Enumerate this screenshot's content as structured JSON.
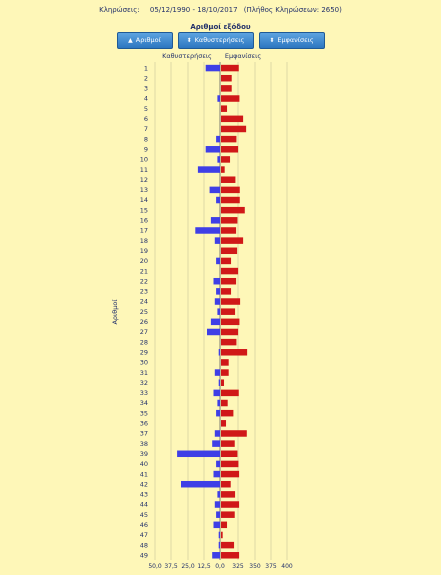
{
  "header": {
    "label": "Κληρώσεις:",
    "range": "05/12/1990 - 18/10/2017",
    "count": "(Πλήθος Κληρώσεων: 2650)"
  },
  "sort": {
    "title": "Αριθμοί εξόδου",
    "buttons": [
      {
        "label": "Αριθμοί",
        "arrow": "▲"
      },
      {
        "label": "Καθυστερήσεις",
        "arrow": "⬍"
      },
      {
        "label": "Εμφανίσεις",
        "arrow": "⬍"
      }
    ]
  },
  "chart_data": {
    "type": "bar",
    "orientation": "horizontal-butterfly",
    "categories": [
      "1",
      "2",
      "3",
      "4",
      "5",
      "6",
      "7",
      "8",
      "9",
      "10",
      "11",
      "12",
      "13",
      "14",
      "15",
      "16",
      "17",
      "18",
      "19",
      "20",
      "21",
      "22",
      "23",
      "24",
      "25",
      "26",
      "27",
      "28",
      "29",
      "30",
      "31",
      "32",
      "33",
      "34",
      "35",
      "36",
      "37",
      "38",
      "39",
      "40",
      "41",
      "42",
      "43",
      "44",
      "45",
      "46",
      "47",
      "48",
      "49"
    ],
    "series": [
      {
        "name": "Καθυστερήσεις",
        "color": "#3f3fe6",
        "values": [
          11,
          0,
          0,
          2,
          0,
          0,
          0,
          3,
          11,
          2,
          17,
          0,
          8,
          3,
          0,
          7,
          19,
          4,
          0,
          3,
          0,
          5,
          3,
          4,
          2,
          7,
          10,
          0,
          1,
          0,
          4,
          1,
          5,
          2,
          3,
          0,
          4,
          6,
          33,
          3,
          5,
          30,
          2,
          4,
          3,
          5,
          1,
          1,
          6
        ]
      },
      {
        "name": "Εμφανίσεις",
        "color": "#d01818",
        "values": [
          253,
          232,
          232,
          255,
          218,
          266,
          275,
          246,
          251,
          227,
          211,
          243,
          256,
          256,
          271,
          249,
          245,
          266,
          248,
          230,
          251,
          245,
          230,
          257,
          242,
          255,
          251,
          246,
          278,
          223,
          223,
          209,
          253,
          220,
          237,
          215,
          277,
          241,
          249,
          252,
          254,
          229,
          242,
          254,
          241,
          218,
          205,
          239,
          254
        ]
      }
    ],
    "left_label": "Καθυστερήσεις",
    "right_label": "Εμφανίσεις",
    "ylabel": "Αριθμοί",
    "x_ticks": [
      "50,0",
      "37,5",
      "25,0",
      "12,5",
      "0,0",
      "325",
      "350",
      "375",
      "400"
    ],
    "left_range": [
      0,
      50
    ],
    "right_range": [
      200,
      400
    ]
  }
}
